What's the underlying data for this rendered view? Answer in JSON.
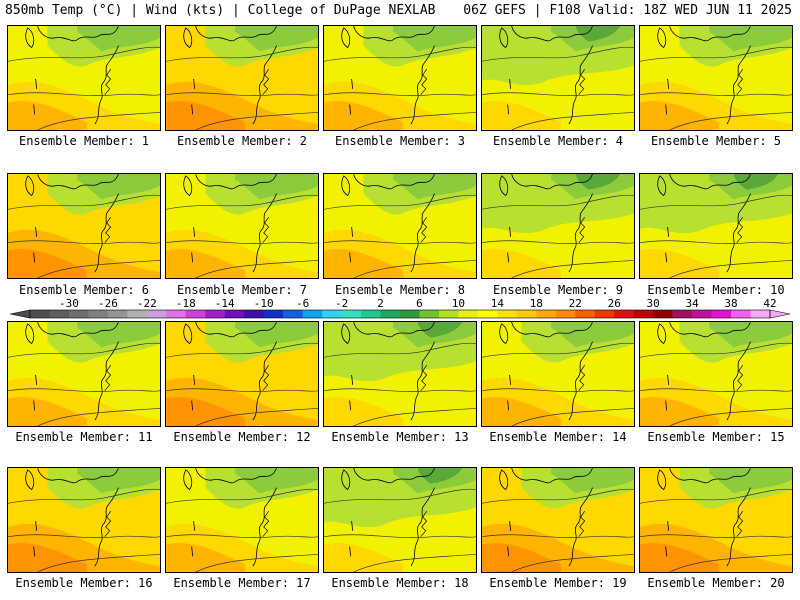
{
  "header": {
    "left": "850mb Temp (°C) | Wind (kts) | College of DuPage NEXLAB",
    "right": "06Z GEFS | F108 Valid: 18Z WED JUN 11 2025"
  },
  "members": [
    {
      "label": "Ensemble Member: 1",
      "tone": "yellow"
    },
    {
      "label": "Ensemble Member: 2",
      "tone": "orange"
    },
    {
      "label": "Ensemble Member: 3",
      "tone": "yellow"
    },
    {
      "label": "Ensemble Member: 4",
      "tone": "green"
    },
    {
      "label": "Ensemble Member: 5",
      "tone": "yellow"
    },
    {
      "label": "Ensemble Member: 6",
      "tone": "orange"
    },
    {
      "label": "Ensemble Member: 7",
      "tone": "yellow"
    },
    {
      "label": "Ensemble Member: 8",
      "tone": "yellow"
    },
    {
      "label": "Ensemble Member: 9",
      "tone": "green"
    },
    {
      "label": "Ensemble Member: 10",
      "tone": "green"
    },
    {
      "label": "Ensemble Member: 11",
      "tone": "yellow"
    },
    {
      "label": "Ensemble Member: 12",
      "tone": "orange"
    },
    {
      "label": "Ensemble Member: 13",
      "tone": "green"
    },
    {
      "label": "Ensemble Member: 14",
      "tone": "yellow"
    },
    {
      "label": "Ensemble Member: 15",
      "tone": "yellow"
    },
    {
      "label": "Ensemble Member: 16",
      "tone": "orange"
    },
    {
      "label": "Ensemble Member: 17",
      "tone": "yellow"
    },
    {
      "label": "Ensemble Member: 18",
      "tone": "green"
    },
    {
      "label": "Ensemble Member: 19",
      "tone": "orange"
    },
    {
      "label": "Ensemble Member: 20",
      "tone": "orange"
    }
  ],
  "colorbar": {
    "ticks": [
      "-30",
      "-26",
      "-22",
      "-18",
      "-14",
      "-10",
      "-6",
      "-2",
      "2",
      "6",
      "10",
      "14",
      "18",
      "22",
      "26",
      "30",
      "34",
      "38",
      "42"
    ],
    "colors": [
      "#4e4e4e",
      "#5e5e5e",
      "#6e6e6e",
      "#808080",
      "#959595",
      "#b0b0b0",
      "#c8a0e0",
      "#e070e8",
      "#d040d8",
      "#a020c8",
      "#7010b8",
      "#4010a8",
      "#1030c8",
      "#1060e0",
      "#10a0f0",
      "#30d0f0",
      "#30e0c0",
      "#20c890",
      "#20a860",
      "#309838",
      "#70c030",
      "#b0e020",
      "#e8f010",
      "#ffff00",
      "#ffe000",
      "#ffc800",
      "#ffa800",
      "#ff8800",
      "#ff6000",
      "#f03800",
      "#e01010",
      "#c00000",
      "#900000",
      "#a01060",
      "#c010a0",
      "#e010d0",
      "#f060f0",
      "#f8a8f8"
    ]
  },
  "palette": {
    "green_dark": "#5aa83a",
    "green": "#8ccc3c",
    "green_light": "#b8e030",
    "yellow": "#f2f200",
    "yellow_orange": "#ffd800",
    "orange": "#ffb400",
    "dark_orange": "#ff9400"
  }
}
